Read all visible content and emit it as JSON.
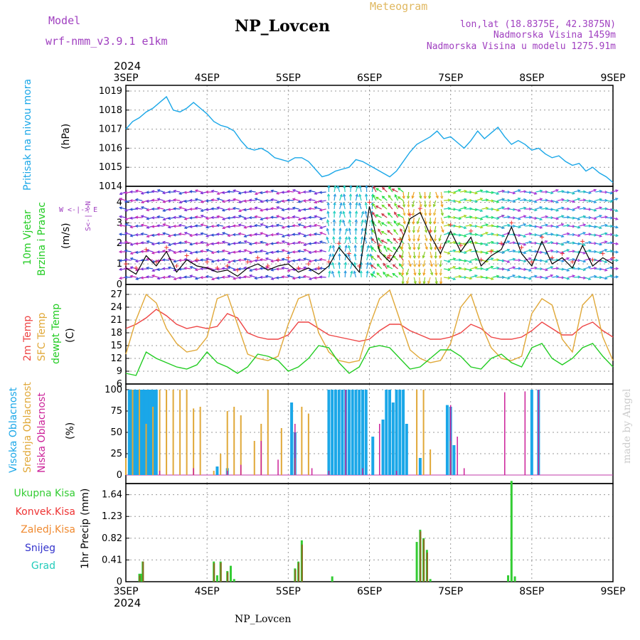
{
  "header": {
    "model_label": "Model",
    "model_value": "wrf-nmm_v3.9.1 e1km",
    "title": "NP_Lovcen",
    "meteogram_label": "Meteogram",
    "lonlat": "lon,lat (18.8375E, 42.3875N)",
    "altitude": "Nadmorska Visina 1459m",
    "model_altitude": "Nadmorska Visina u modelu 1275.91m",
    "year": "2024",
    "footer": "NP_Lovcen",
    "credit": "made by Angel"
  },
  "colors": {
    "pressure": "#1aa7e8",
    "wind_speed": "#000000",
    "wind_gust": "#ee3333",
    "t2m": "#ee4444",
    "sfc": "#e0a838",
    "dew": "#22cc22",
    "cloud_high": "#1aa7e8",
    "cloud_mid": "#e0a838",
    "cloud_low": "#cc2299",
    "precip_total": "#33cc33",
    "precip_conv": "#ee3333",
    "precip_frz": "#f08a30",
    "precip_snow": "#3333cc",
    "precip_grad": "#22ccbb",
    "model_label": "#a040c0"
  },
  "chart_data": [
    {
      "type": "line",
      "name": "pressure",
      "ylabel_main": "Pritisak na nivou mora",
      "ylabel_unit": "(hPa)",
      "ylim": [
        1014,
        1019
      ],
      "yticks": [
        "1014",
        "1015",
        "1016",
        "1017",
        "1018",
        "1019"
      ],
      "x_categories": [
        "3SEP",
        "4SEP",
        "5SEP",
        "6SEP",
        "7SEP",
        "8SEP",
        "9SEP"
      ],
      "x_range_hours": [
        0,
        144
      ],
      "grid": true,
      "x": [
        0,
        2,
        4,
        6,
        8,
        10,
        12,
        14,
        16,
        18,
        20,
        22,
        24,
        26,
        28,
        30,
        32,
        34,
        36,
        38,
        40,
        42,
        44,
        46,
        48,
        50,
        52,
        54,
        56,
        58,
        60,
        62,
        64,
        66,
        68,
        70,
        72,
        74,
        76,
        78,
        80,
        82,
        84,
        86,
        88,
        90,
        92,
        94,
        96,
        98,
        100,
        102,
        104,
        106,
        108,
        110,
        112,
        114,
        116,
        118,
        120,
        122,
        124,
        126,
        128,
        130,
        132,
        134,
        136,
        138,
        140,
        142,
        144
      ],
      "values": [
        1017.0,
        1017.4,
        1017.6,
        1017.9,
        1018.1,
        1018.4,
        1018.7,
        1018.0,
        1017.9,
        1018.1,
        1018.4,
        1018.1,
        1017.8,
        1017.4,
        1017.2,
        1017.1,
        1016.9,
        1016.4,
        1016.0,
        1015.9,
        1016.0,
        1015.8,
        1015.5,
        1015.4,
        1015.3,
        1015.5,
        1015.5,
        1015.3,
        1014.9,
        1014.5,
        1014.6,
        1014.8,
        1014.9,
        1015.0,
        1015.4,
        1015.3,
        1015.1,
        1014.9,
        1014.7,
        1014.5,
        1014.8,
        1015.3,
        1015.8,
        1016.2,
        1016.4,
        1016.6,
        1016.9,
        1016.5,
        1016.6,
        1016.3,
        1016.0,
        1016.4,
        1016.9,
        1016.5,
        1016.8,
        1017.1,
        1016.6,
        1016.2,
        1016.4,
        1016.2,
        1015.9,
        1016.0,
        1015.7,
        1015.5,
        1015.6,
        1015.3,
        1015.1,
        1015.2,
        1014.8,
        1015.0,
        1014.7,
        1014.5,
        1014.2
      ]
    },
    {
      "type": "line",
      "name": "wind",
      "ylabel_main": "10m Vjetar",
      "ylabel_sub": "Brzina i Pravac",
      "ylabel_unit": "(m/s)",
      "compass": "W <-|-> E",
      "compass_ns": "S<-|->N",
      "ylim": [
        0,
        4.5
      ],
      "yticks": [
        "0",
        "1",
        "2",
        "3",
        "4"
      ],
      "grid": true,
      "x": [
        0,
        3,
        6,
        9,
        12,
        15,
        18,
        21,
        24,
        27,
        30,
        33,
        36,
        39,
        42,
        45,
        48,
        51,
        54,
        57,
        60,
        63,
        66,
        69,
        72,
        75,
        78,
        81,
        84,
        87,
        90,
        93,
        96,
        99,
        102,
        105,
        108,
        111,
        114,
        117,
        120,
        123,
        126,
        129,
        132,
        135,
        138,
        141,
        144
      ],
      "values": [
        0.8,
        0.5,
        1.4,
        0.9,
        1.6,
        0.6,
        1.2,
        0.9,
        0.8,
        0.6,
        0.7,
        0.4,
        0.8,
        1.0,
        0.7,
        0.9,
        1.0,
        0.6,
        0.8,
        0.5,
        0.9,
        1.8,
        1.2,
        0.6,
        3.8,
        1.6,
        1.1,
        1.9,
        3.2,
        3.5,
        2.4,
        1.5,
        2.6,
        1.6,
        2.3,
        0.9,
        1.4,
        1.7,
        2.8,
        1.5,
        0.9,
        2.1,
        1.0,
        1.3,
        0.8,
        1.9,
        0.9,
        1.3,
        1.0
      ],
      "gust": [
        1.0,
        0.8,
        1.7,
        1.1,
        1.8,
        0.9,
        1.4,
        1.2,
        1.1,
        0.8,
        0.9,
        0.7,
        1.1,
        1.3,
        0.9,
        1.2,
        1.3,
        0.8,
        1.0,
        0.8,
        1.1,
        2.0,
        1.5,
        0.9,
        4.0,
        1.9,
        1.4,
        2.2,
        3.4,
        3.7,
        2.6,
        1.8,
        2.9,
        1.9,
        2.6,
        1.2,
        1.6,
        2.0,
        3.0,
        1.8,
        1.1,
        2.3,
        1.3,
        1.5,
        1.1,
        2.1,
        1.2,
        1.5,
        1.3
      ],
      "dir_segments": [
        {
          "from": 0,
          "to": 60,
          "dir": "W",
          "colors": [
            "#7b2fd8",
            "#c02ab8",
            "#2a4fd0"
          ]
        },
        {
          "from": 60,
          "to": 74,
          "dir": "N",
          "colors": [
            "#22b6d6",
            "#22d0c0",
            "#2a9be0"
          ]
        },
        {
          "from": 74,
          "to": 82,
          "dir": "NW",
          "colors": [
            "#22dd44",
            "#66dd22",
            "#cc3344"
          ]
        },
        {
          "from": 82,
          "to": 94,
          "dir": "S",
          "colors": [
            "#e8b838",
            "#f0a020",
            "#88cc22"
          ]
        },
        {
          "from": 94,
          "to": 110,
          "dir": "E",
          "colors": [
            "#22d0b0",
            "#22dd66",
            "#a8d822"
          ]
        },
        {
          "from": 110,
          "to": 144,
          "dir": "E",
          "colors": [
            "#2a9be0",
            "#22c0c0",
            "#a838d8"
          ]
        }
      ]
    },
    {
      "type": "line",
      "name": "temperature",
      "ylabel_1": "2m Temp",
      "ylabel_2": "SFC Temp",
      "ylabel_3": "dewpt Temp",
      "ylabel_unit": "(C)",
      "ylim": [
        6,
        28
      ],
      "yticks": [
        "6",
        "9",
        "12",
        "15",
        "18",
        "21",
        "24",
        "27"
      ],
      "grid": true,
      "x": [
        0,
        3,
        6,
        9,
        12,
        15,
        18,
        21,
        24,
        27,
        30,
        33,
        36,
        39,
        42,
        45,
        48,
        51,
        54,
        57,
        60,
        63,
        66,
        69,
        72,
        75,
        78,
        81,
        84,
        87,
        90,
        93,
        96,
        99,
        102,
        105,
        108,
        111,
        114,
        117,
        120,
        123,
        126,
        129,
        132,
        135,
        138,
        141,
        144
      ],
      "series": [
        {
          "name": "2m Temp",
          "values": [
            19.0,
            20.0,
            21.5,
            23.5,
            22.0,
            20.0,
            19.0,
            19.5,
            19.0,
            19.5,
            22.5,
            21.5,
            18.0,
            17.0,
            16.5,
            16.5,
            17.5,
            20.5,
            20.5,
            19.0,
            17.5,
            17.0,
            16.5,
            16.0,
            16.5,
            18.5,
            20.0,
            20.0,
            18.5,
            17.5,
            16.5,
            16.5,
            17.0,
            18.0,
            20.0,
            19.0,
            17.0,
            16.5,
            16.5,
            17.0,
            18.5,
            20.5,
            19.0,
            17.5,
            17.5,
            19.5,
            20.5,
            18.5,
            17.0
          ]
        },
        {
          "name": "SFC Temp",
          "values": [
            13.0,
            21.0,
            27.0,
            25.0,
            19.0,
            15.5,
            13.5,
            14.0,
            17.0,
            26.0,
            27.0,
            20.0,
            13.0,
            12.0,
            11.5,
            12.5,
            20.0,
            26.0,
            27.0,
            18.0,
            13.5,
            11.5,
            11.0,
            11.5,
            19.5,
            26.0,
            28.0,
            21.0,
            14.0,
            12.0,
            11.0,
            11.5,
            15.5,
            24.0,
            27.0,
            20.0,
            14.5,
            12.0,
            11.5,
            12.5,
            22.5,
            26.0,
            24.5,
            16.5,
            13.5,
            24.5,
            27.0,
            17.0,
            11.5
          ]
        },
        {
          "name": "dewpt Temp",
          "values": [
            8.5,
            8.0,
            13.5,
            12.0,
            11.0,
            10.0,
            9.5,
            10.5,
            13.5,
            11.0,
            10.0,
            8.5,
            10.0,
            13.0,
            12.5,
            11.5,
            9.0,
            10.0,
            12.0,
            15.0,
            14.5,
            11.0,
            8.5,
            10.0,
            14.5,
            15.0,
            14.5,
            12.0,
            9.5,
            10.0,
            12.0,
            14.0,
            14.0,
            12.5,
            10.0,
            9.5,
            12.0,
            13.0,
            11.0,
            10.0,
            14.5,
            15.5,
            12.0,
            10.5,
            12.0,
            14.5,
            15.5,
            12.5,
            10.0
          ]
        }
      ]
    },
    {
      "type": "bar",
      "name": "clouds",
      "ylabel_1": "Visoka Oblacnost",
      "ylabel_2": "Srednja Oblacnost",
      "ylabel_3": "Niska Oblacnost",
      "ylabel_unit": "(%)",
      "ylim": [
        0,
        100
      ],
      "yticks": [
        "0",
        "25",
        "50",
        "75",
        "100"
      ],
      "grid": true,
      "series": [
        {
          "name": "Visoka Oblacnost",
          "x": [
            1,
            1.5,
            2,
            2.5,
            3,
            3.5,
            4,
            4.5,
            5,
            5.5,
            6,
            6.5,
            7,
            7.5,
            8,
            8.5,
            9,
            27,
            30,
            49,
            50,
            60,
            61,
            62,
            63,
            64,
            65,
            66,
            67,
            68,
            69,
            70,
            71,
            73,
            76,
            77,
            78,
            79,
            80,
            81,
            82,
            83,
            87,
            95,
            96,
            97,
            120,
            122
          ],
          "values": [
            100,
            100,
            100,
            100,
            100,
            100,
            100,
            100,
            100,
            100,
            100,
            100,
            100,
            100,
            100,
            100,
            100,
            10,
            8,
            85,
            50,
            100,
            100,
            100,
            100,
            100,
            100,
            100,
            100,
            100,
            100,
            100,
            100,
            45,
            65,
            100,
            100,
            85,
            100,
            100,
            100,
            60,
            20,
            82,
            80,
            35,
            100,
            100
          ]
        },
        {
          "name": "Srednja Oblacnost",
          "x": [
            0,
            2,
            4,
            6,
            8,
            10,
            12,
            14,
            16,
            18,
            20,
            22,
            24,
            26,
            28,
            30,
            32,
            34,
            36,
            38,
            40,
            42,
            44,
            46,
            48,
            50,
            52,
            54,
            56,
            58,
            70,
            72,
            74,
            78,
            80,
            84,
            86,
            88,
            90,
            92,
            94,
            96,
            98,
            100
          ],
          "values": [
            20,
            100,
            100,
            60,
            80,
            100,
            100,
            100,
            100,
            100,
            78,
            80,
            0,
            5,
            25,
            75,
            80,
            70,
            0,
            40,
            60,
            100,
            0,
            55,
            0,
            20,
            80,
            72,
            0,
            0,
            0,
            0,
            0,
            0,
            0,
            0,
            100,
            100,
            30,
            0,
            0,
            40,
            0,
            0
          ]
        },
        {
          "name": "Niska Oblacnost",
          "x": [
            10,
            20,
            30,
            34,
            40,
            45,
            50,
            55,
            60,
            65,
            70,
            75,
            80,
            88,
            96,
            98,
            100,
            112,
            118,
            122
          ],
          "values": [
            5,
            8,
            5,
            12,
            40,
            18,
            60,
            8,
            5,
            100,
            8,
            60,
            5,
            0,
            82,
            45,
            8,
            97,
            98,
            100
          ]
        }
      ]
    },
    {
      "type": "bar",
      "name": "precip",
      "ylabel_main": "1hr Precip (mm)",
      "legend": [
        "Ukupna Kisa",
        "Konvek.Kisa",
        "Zaledj.Kisa",
        "Snijeg",
        "Grad"
      ],
      "ylim": [
        0,
        1.85
      ],
      "yticks": [
        "0",
        "0.41",
        "0.82",
        "1.23",
        "1.64"
      ],
      "grid": true,
      "series": [
        {
          "name": "Ukupna Kisa",
          "x": [
            4,
            4.5,
            5,
            26,
            27,
            28,
            30,
            31,
            32,
            50,
            51,
            52,
            61,
            86,
            87,
            88,
            89,
            90,
            113,
            114,
            115
          ],
          "values": [
            0.15,
            0.15,
            0.38,
            0.38,
            0.12,
            0.38,
            0.2,
            0.3,
            0.05,
            0.25,
            0.38,
            0.78,
            0.1,
            0.75,
            0.98,
            0.82,
            0.6,
            0.05,
            0.12,
            1.9,
            0.1
          ]
        },
        {
          "name": "Konvek.Kisa",
          "x": [
            4,
            5,
            26,
            28,
            30,
            50,
            51,
            52,
            87,
            88,
            89
          ],
          "values": [
            0.12,
            0.38,
            0.35,
            0.36,
            0.18,
            0.23,
            0.36,
            0.7,
            0.95,
            0.8,
            0.55
          ]
        }
      ]
    }
  ]
}
